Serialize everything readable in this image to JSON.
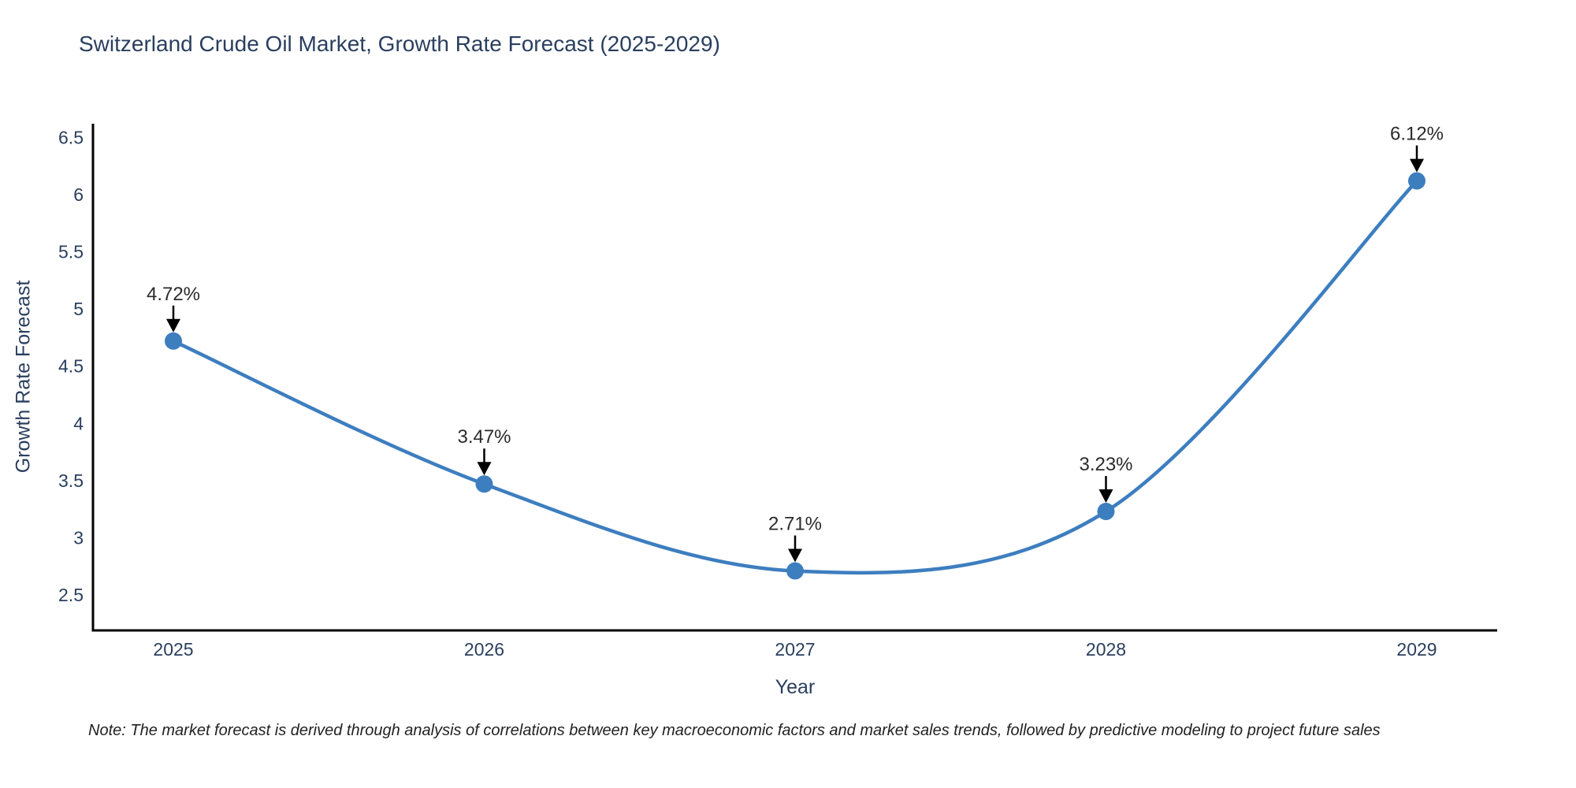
{
  "chart_data": {
    "type": "line",
    "title": "Switzerland Crude Oil Market, Growth Rate Forecast (2025-2029)",
    "xlabel": "Year",
    "ylabel": "Growth Rate Forecast",
    "categories": [
      "2025",
      "2026",
      "2027",
      "2028",
      "2029"
    ],
    "series": [
      {
        "name": "Growth Rate Forecast",
        "values": [
          4.72,
          3.47,
          2.71,
          3.23,
          6.12
        ],
        "point_labels": [
          "4.72%",
          "3.47%",
          "2.71%",
          "3.23%",
          "6.12%"
        ]
      }
    ],
    "yticks": [
      2.5,
      3,
      3.5,
      4,
      4.5,
      5,
      5.5,
      6,
      6.5
    ],
    "ylim": [
      2.19,
      6.62
    ],
    "line_shape": "spline",
    "grid": false,
    "legend": false,
    "colors": {
      "line": "#3d7ebf",
      "marker": "#3d7ebf",
      "axis": "#000000",
      "text": "#2a3f5f",
      "annotation_text": "#2b2b2b",
      "annotation_arrow": "#000000",
      "background": "#ffffff"
    },
    "note": "Note: The market forecast is derived through analysis of correlations between key macroeconomic factors and market sales trends, followed by predictive modeling to project future sales"
  }
}
